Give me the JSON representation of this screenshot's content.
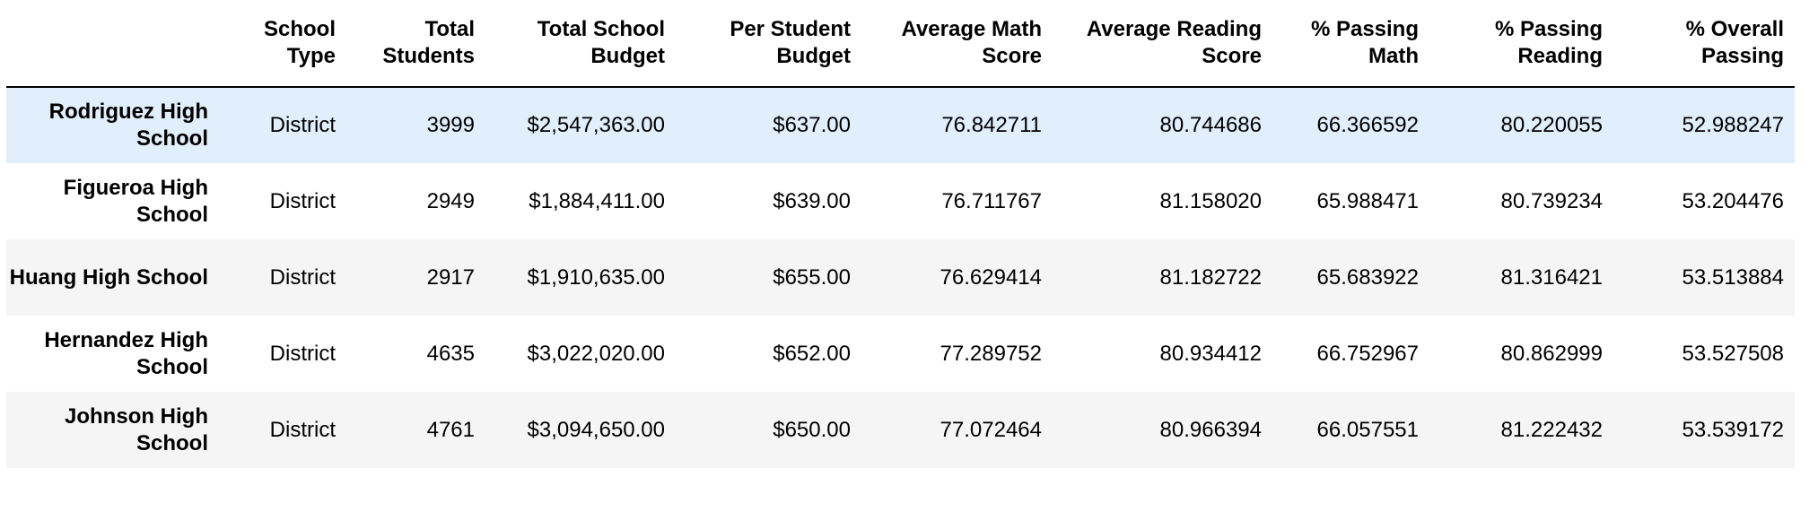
{
  "table": {
    "index_header": "",
    "columns": [
      "School Type",
      "Total Students",
      "Total School Budget",
      "Per Student Budget",
      "Average Math Score",
      "Average Reading Score",
      "% Passing Math",
      "% Passing Reading",
      "% Overall Passing"
    ],
    "rows": [
      {
        "index": "Rodriguez High School",
        "highlighted": true,
        "values": [
          "District",
          "3999",
          "$2,547,363.00",
          "$637.00",
          "76.842711",
          "80.744686",
          "66.366592",
          "80.220055",
          "52.988247"
        ]
      },
      {
        "index": "Figueroa High School",
        "highlighted": false,
        "values": [
          "District",
          "2949",
          "$1,884,411.00",
          "$639.00",
          "76.711767",
          "81.158020",
          "65.988471",
          "80.739234",
          "53.204476"
        ]
      },
      {
        "index": "Huang High School",
        "highlighted": false,
        "values": [
          "District",
          "2917",
          "$1,910,635.00",
          "$655.00",
          "76.629414",
          "81.182722",
          "65.683922",
          "81.316421",
          "53.513884"
        ]
      },
      {
        "index": "Hernandez High School",
        "highlighted": false,
        "values": [
          "District",
          "4635",
          "$3,022,020.00",
          "$652.00",
          "77.289752",
          "80.934412",
          "66.752967",
          "80.862999",
          "53.527508"
        ]
      },
      {
        "index": "Johnson High School",
        "highlighted": false,
        "values": [
          "District",
          "4761",
          "$3,094,650.00",
          "$650.00",
          "77.072464",
          "80.966394",
          "66.057551",
          "81.222432",
          "53.539172"
        ]
      }
    ]
  }
}
